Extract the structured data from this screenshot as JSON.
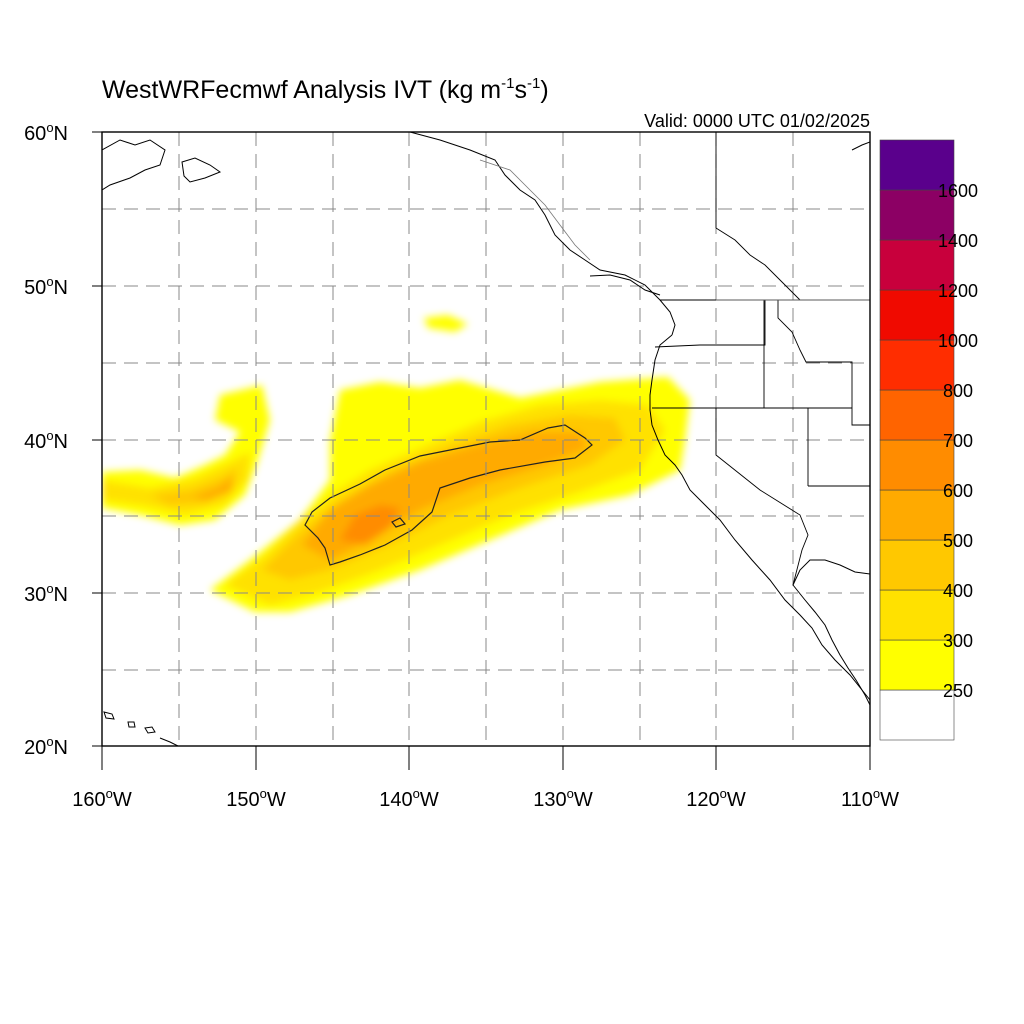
{
  "title": {
    "main": "WestWRFecmwf Analysis IVT (kg m",
    "exp1": "-1",
    "mid": "s",
    "exp2": "-1",
    "close": ")"
  },
  "valid_label": "Valid: 0000 UTC 01/02/2025",
  "degree_symbol": "o",
  "lat_labels": [
    {
      "num": "60",
      "hemi": "N"
    },
    {
      "num": "50",
      "hemi": "N"
    },
    {
      "num": "40",
      "hemi": "N"
    },
    {
      "num": "30",
      "hemi": "N"
    },
    {
      "num": "20",
      "hemi": "N"
    }
  ],
  "lon_labels": [
    {
      "num": "160",
      "hemi": "W"
    },
    {
      "num": "150",
      "hemi": "W"
    },
    {
      "num": "140",
      "hemi": "W"
    },
    {
      "num": "130",
      "hemi": "W"
    },
    {
      "num": "120",
      "hemi": "W"
    },
    {
      "num": "110",
      "hemi": "W"
    }
  ],
  "colorbar": {
    "labels": [
      "250",
      "300",
      "400",
      "500",
      "600",
      "700",
      "800",
      "1000",
      "1200",
      "1400",
      "1600"
    ],
    "colors": [
      "#ffffff",
      "#ffff00",
      "#ffe100",
      "#ffc800",
      "#ffaa00",
      "#ff8c00",
      "#ff6400",
      "#ff2d00",
      "#f00a00",
      "#c8003c",
      "#8c0064",
      "#5a008c"
    ]
  },
  "chart_data": {
    "type": "heatmap",
    "variable": "IVT",
    "units": "kg m-1 s-1",
    "valid": "0000 UTC 01/02/2025",
    "lon_range": [
      -160,
      -110
    ],
    "lat_range": [
      20,
      60
    ],
    "lon_ticks": [
      -160,
      -150,
      -140,
      -130,
      -120,
      -110
    ],
    "lat_ticks": [
      20,
      30,
      40,
      50,
      60
    ],
    "grid": true,
    "levels": [
      250,
      300,
      400,
      500,
      600,
      700,
      800,
      1000,
      1200,
      1400,
      1600
    ],
    "features": [
      {
        "lon": -141,
        "lat": 36,
        "ivt": 600
      },
      {
        "lon": -135,
        "lat": 38,
        "ivt": 550
      },
      {
        "lon": -153,
        "lat": 36.5,
        "ivt": 450
      },
      {
        "lon": -125,
        "lat": 40.5,
        "ivt": 420
      },
      {
        "lon": -137,
        "lat": 47.5,
        "ivt": 260
      }
    ]
  }
}
